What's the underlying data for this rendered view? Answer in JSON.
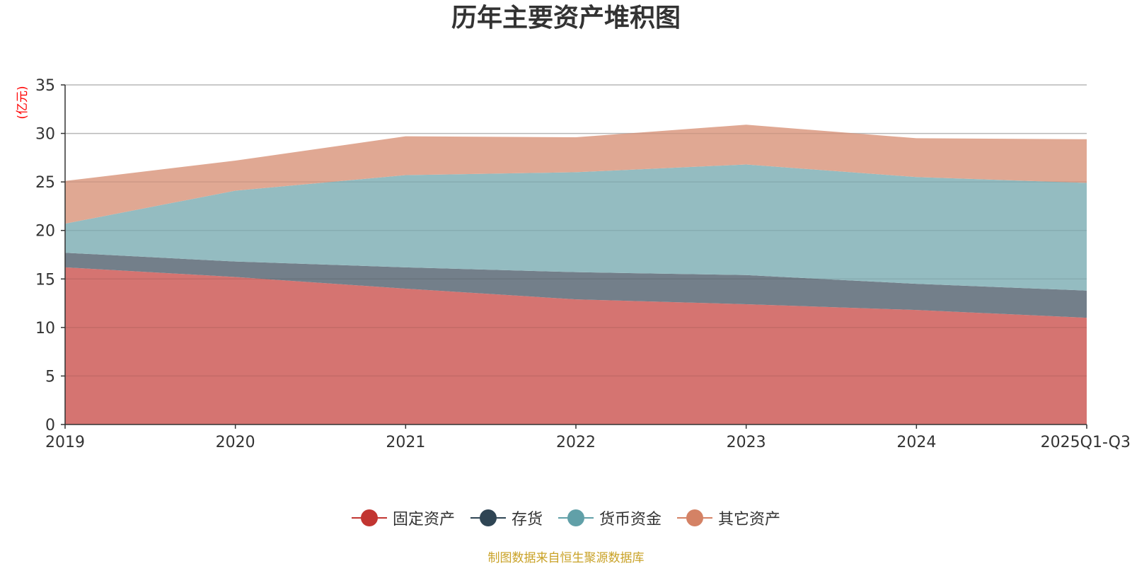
{
  "chart_data": {
    "type": "area",
    "stacked": true,
    "title": "历年主要资产堆积图",
    "ylabel": "(亿元)",
    "xlabel": "",
    "categories": [
      "2019",
      "2020",
      "2021",
      "2022",
      "2023",
      "2024",
      "2025Q1-Q3"
    ],
    "ylim": [
      0,
      35
    ],
    "yticks": [
      0,
      5,
      10,
      15,
      20,
      25,
      30,
      35
    ],
    "grid": true,
    "legend_position": "bottom",
    "series": [
      {
        "name": "固定资产",
        "color": "#c23531",
        "fill": "#d4706c",
        "values": [
          16.2,
          15.2,
          14.0,
          12.9,
          12.4,
          11.8,
          11.0
        ]
      },
      {
        "name": "存货",
        "color": "#2f4554",
        "fill": "#6e7b86",
        "values": [
          1.5,
          1.6,
          2.2,
          2.8,
          3.0,
          2.7,
          2.8
        ]
      },
      {
        "name": "货币资金",
        "color": "#61a0a8",
        "fill": "#91babf",
        "values": [
          3.0,
          7.3,
          9.5,
          10.3,
          11.4,
          11.0,
          11.1
        ]
      },
      {
        "name": "其它资产",
        "color": "#d48265",
        "fill": "#dfa58f",
        "values": [
          4.4,
          3.1,
          4.0,
          3.6,
          4.1,
          4.0,
          4.5
        ]
      }
    ],
    "source_note": "制图数据来自恒生聚源数据库"
  }
}
